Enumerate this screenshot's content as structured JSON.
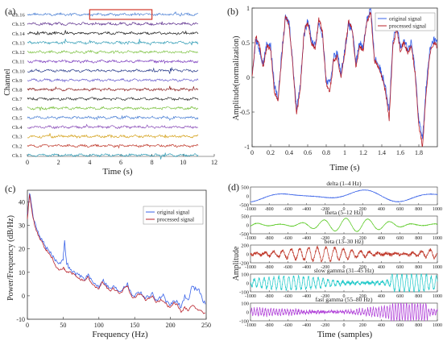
{
  "chart_data": [
    {
      "panel": "(a)",
      "type": "line",
      "xlabel": "Time (s)",
      "ylabel": "Channel",
      "xlim": [
        0,
        12
      ],
      "xticks": [
        0,
        2,
        4,
        6,
        8,
        10,
        12
      ],
      "channels": [
        "Ch.16",
        "Ch.15",
        "Ch.14",
        "Ch.13",
        "Ch.12",
        "Ch.11",
        "Ch.10",
        "Ch.9",
        "Ch.8",
        "Ch.7",
        "Ch.6",
        "Ch.5",
        "Ch.4",
        "Ch.3",
        "Ch.2",
        "Ch.1"
      ],
      "channel_colors": [
        "#4a7fd4",
        "#5b2c8c",
        "#1d1d1d",
        "#39a0b8",
        "#7dc242",
        "#7d3fbf",
        "#2c3e8c",
        "#6b5fd0",
        "#8a1d1d",
        "#2e2e2e",
        "#7dc242",
        "#4a7fd4",
        "#8a4db8",
        "#d4a017",
        "#c0392b",
        "#39a0b8"
      ],
      "highlight_box": {
        "x_from": 4,
        "x_to": 8,
        "channel": "Ch.16"
      },
      "duration_s": 11
    },
    {
      "panel": "(b)",
      "type": "line",
      "xlabel": "Time (s)",
      "ylabel": "Amplitude(normalization)",
      "xlim": [
        0,
        2
      ],
      "ylim": [
        -1,
        1
      ],
      "xticks": [
        0,
        0.2,
        0.4,
        0.6,
        0.8,
        1,
        1.2,
        1.4,
        1.6,
        1.8
      ],
      "yticks": [
        -1,
        -0.5,
        0,
        0.5,
        1
      ],
      "legend_position": "top-right",
      "series": [
        {
          "name": "original signal",
          "color": "#3a63e8",
          "x": [
            0,
            0.04,
            0.08,
            0.12,
            0.16,
            0.2,
            0.24,
            0.28,
            0.32,
            0.36,
            0.4,
            0.44,
            0.48,
            0.52,
            0.56,
            0.6,
            0.64,
            0.68,
            0.72,
            0.76,
            0.8,
            0.84,
            0.88,
            0.92,
            0.96,
            1.0,
            1.04,
            1.08,
            1.12,
            1.16,
            1.2,
            1.24,
            1.28,
            1.32,
            1.36,
            1.4,
            1.44,
            1.48,
            1.52,
            1.56,
            1.6,
            1.64,
            1.68,
            1.72,
            1.76,
            1.8,
            1.84,
            1.88,
            1.92,
            1.96,
            2.0
          ],
          "y": [
            0.05,
            0.55,
            0.4,
            0.2,
            0.5,
            0.45,
            -0.1,
            -0.3,
            0.35,
            0.85,
            0.8,
            0.2,
            -0.45,
            -0.1,
            0.6,
            0.85,
            0.55,
            0.45,
            0.8,
            0.6,
            -0.05,
            -0.1,
            0.3,
            0.35,
            0.05,
            0.4,
            0.75,
            0.7,
            0.2,
            0.5,
            0.45,
            0.85,
            1.0,
            0.3,
            0.2,
            0.05,
            -0.1,
            -0.5,
            0.5,
            0.75,
            0.45,
            0.55,
            0.4,
            0.5,
            0.1,
            -0.6,
            -0.9,
            -0.1,
            0.4,
            0.55,
            0.5
          ]
        },
        {
          "name": "processed signal",
          "color": "#b8202a",
          "x": [
            0,
            0.04,
            0.08,
            0.12,
            0.16,
            0.2,
            0.24,
            0.28,
            0.32,
            0.36,
            0.4,
            0.44,
            0.48,
            0.52,
            0.56,
            0.6,
            0.64,
            0.68,
            0.72,
            0.76,
            0.8,
            0.84,
            0.88,
            0.92,
            0.96,
            1.0,
            1.04,
            1.08,
            1.12,
            1.16,
            1.2,
            1.24,
            1.28,
            1.32,
            1.36,
            1.4,
            1.44,
            1.48,
            1.52,
            1.56,
            1.6,
            1.64,
            1.68,
            1.72,
            1.76,
            1.8,
            1.84,
            1.88,
            1.92,
            1.96,
            2.0
          ],
          "y": [
            0.0,
            0.6,
            0.45,
            0.15,
            0.45,
            0.4,
            -0.2,
            -0.35,
            0.3,
            0.9,
            0.75,
            0.15,
            -0.55,
            -0.15,
            0.65,
            0.8,
            0.5,
            0.4,
            0.85,
            0.65,
            -0.1,
            -0.2,
            0.25,
            0.3,
            0.0,
            0.35,
            0.8,
            0.7,
            0.15,
            0.45,
            0.4,
            0.8,
            0.95,
            0.25,
            0.15,
            0.0,
            -0.2,
            -0.6,
            0.45,
            0.7,
            0.4,
            0.5,
            0.35,
            0.45,
            0.05,
            -0.7,
            -1.0,
            -0.2,
            0.35,
            0.5,
            0.45
          ]
        }
      ]
    },
    {
      "panel": "(c)",
      "type": "line",
      "xlabel": "Frequency (Hz)",
      "ylabel": "Power/Frequency (dB/Hz)",
      "xlim": [
        0,
        250
      ],
      "ylim": [
        -10,
        45
      ],
      "xticks": [
        0,
        50,
        100,
        150,
        200,
        250
      ],
      "yticks": [
        -10,
        0,
        10,
        20,
        30,
        40
      ],
      "legend_position": "top-right",
      "series": [
        {
          "name": "original signal",
          "color": "#3a63e8",
          "x": [
            0,
            3,
            6,
            10,
            15,
            20,
            25,
            30,
            35,
            40,
            45,
            50,
            52,
            55,
            60,
            65,
            70,
            75,
            80,
            85,
            90,
            95,
            100,
            105,
            110,
            115,
            120,
            125,
            130,
            135,
            140,
            145,
            150,
            155,
            160,
            165,
            170,
            175,
            180,
            185,
            190,
            195,
            200,
            205,
            210,
            215,
            220,
            225,
            230,
            235,
            240,
            245,
            250
          ],
          "y": [
            34,
            44,
            38,
            31,
            27,
            24,
            21,
            19,
            17,
            15,
            14,
            16,
            23,
            14,
            11,
            10,
            9,
            8.5,
            7,
            9,
            6,
            5,
            4,
            7,
            5,
            3,
            4,
            3,
            2,
            4,
            5,
            1,
            0,
            2,
            1,
            -1,
            0,
            1,
            -2,
            -1,
            0,
            -3,
            -4,
            -2,
            -3,
            -5,
            0,
            -2,
            4,
            3,
            3,
            -2,
            -4
          ]
        },
        {
          "name": "processed signal",
          "color": "#b8202a",
          "x": [
            0,
            3,
            6,
            10,
            15,
            20,
            25,
            30,
            35,
            40,
            45,
            50,
            52,
            55,
            60,
            65,
            70,
            75,
            80,
            85,
            90,
            95,
            100,
            105,
            110,
            115,
            120,
            125,
            130,
            135,
            140,
            145,
            150,
            155,
            160,
            165,
            170,
            175,
            180,
            185,
            190,
            195,
            200,
            205,
            210,
            215,
            220,
            225,
            230,
            235,
            240,
            245,
            250
          ],
          "y": [
            33,
            43,
            37,
            30,
            26,
            23,
            20,
            18,
            16,
            12,
            11,
            12,
            11,
            10,
            10,
            9,
            8,
            7,
            6,
            8,
            5,
            4,
            3,
            6,
            4,
            2,
            3,
            2,
            1,
            3,
            4,
            0,
            -1,
            1,
            0,
            -2,
            -1,
            0,
            -3,
            -2,
            -2,
            -4,
            -5,
            -3,
            -4,
            -7,
            -5,
            -6,
            -4,
            -5,
            -6,
            -7,
            -8
          ]
        }
      ]
    },
    {
      "panel": "(d)",
      "type": "line",
      "xlabel": "Time (samples)",
      "ylabel": "Amplitude",
      "xlim": [
        -1000,
        1000
      ],
      "xticks": [
        -1000,
        -800,
        -600,
        -400,
        -200,
        0,
        200,
        400,
        600,
        800,
        1000
      ],
      "subplots": [
        {
          "title": "delta (1–4 Hz)",
          "color": "#3a63e8",
          "ylim": [
            -500,
            500
          ],
          "yticks": [
            -500,
            0,
            500
          ],
          "band_hz": [
            1,
            4
          ]
        },
        {
          "title": "theta (5–12 Hz)",
          "color": "#55c81e",
          "ylim": [
            -500,
            500
          ],
          "yticks": [
            -500,
            0,
            500
          ],
          "band_hz": [
            5,
            12
          ]
        },
        {
          "title": "beta (13–30 Hz)",
          "color": "#c0392b",
          "ylim": [
            -200,
            200
          ],
          "yticks": [
            -200,
            0,
            200
          ],
          "band_hz": [
            13,
            30
          ]
        },
        {
          "title": "slow gamma (31–45 Hz)",
          "color": "#1fc9c9",
          "ylim": [
            -100,
            100
          ],
          "yticks": [
            -100,
            0,
            100
          ],
          "band_hz": [
            31,
            45
          ]
        },
        {
          "title": "fast gamma (55–80 Hz)",
          "color": "#b040d8",
          "ylim": [
            -100,
            100
          ],
          "yticks": [
            -100,
            0,
            100
          ],
          "band_hz": [
            55,
            80
          ]
        }
      ]
    }
  ]
}
